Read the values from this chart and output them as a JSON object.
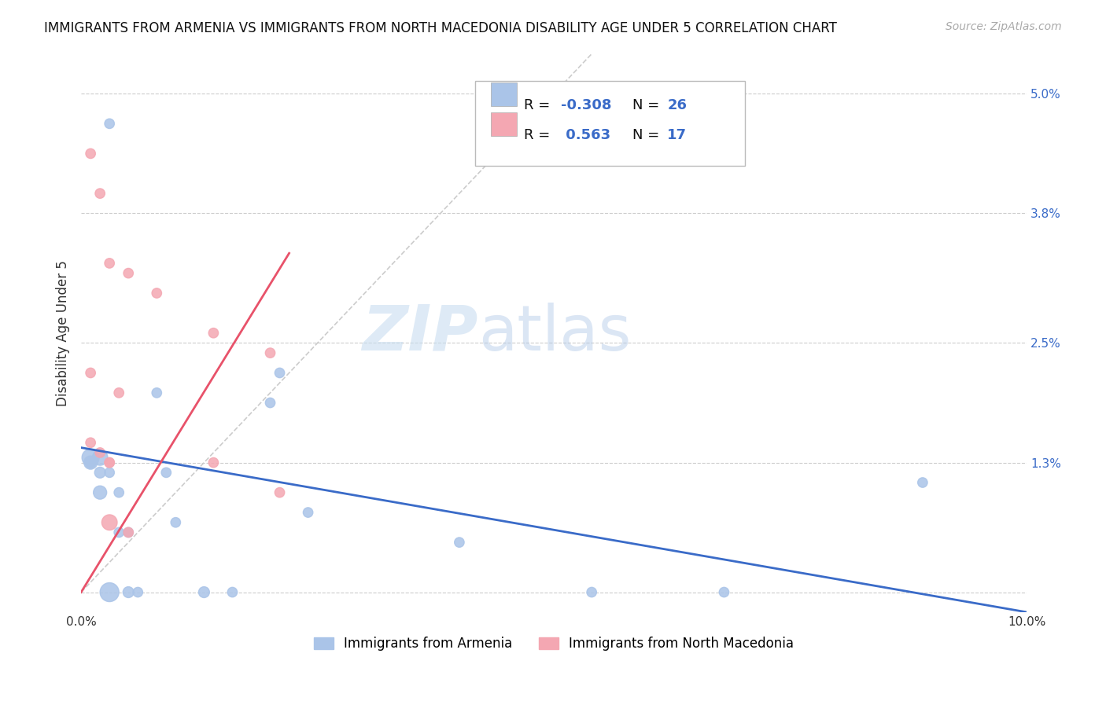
{
  "title": "IMMIGRANTS FROM ARMENIA VS IMMIGRANTS FROM NORTH MACEDONIA DISABILITY AGE UNDER 5 CORRELATION CHART",
  "source": "Source: ZipAtlas.com",
  "ylabel": "Disability Age Under 5",
  "watermark_zip": "ZIP",
  "watermark_atlas": "atlas",
  "xlim": [
    0.0,
    0.1
  ],
  "ylim": [
    -0.002,
    0.054
  ],
  "xtick_positions": [
    0.0,
    0.02,
    0.04,
    0.06,
    0.08,
    0.1
  ],
  "xtick_labels": [
    "0.0%",
    "",
    "",
    "",
    "",
    "10.0%"
  ],
  "ytick_vals_right": [
    0.05,
    0.038,
    0.025,
    0.013,
    0.0
  ],
  "ytick_labels_right": [
    "5.0%",
    "3.8%",
    "2.5%",
    "1.3%",
    ""
  ],
  "color_armenia": "#aac4e8",
  "color_macedonia": "#f4a7b2",
  "color_line_armenia": "#3a6bc8",
  "color_line_macedonia": "#e8526a",
  "color_diag": "#cccccc",
  "armenia_x": [
    0.003,
    0.005,
    0.008,
    0.01,
    0.013,
    0.016,
    0.02,
    0.002,
    0.001,
    0.001,
    0.001,
    0.002,
    0.002,
    0.003,
    0.003,
    0.004,
    0.004,
    0.005,
    0.006,
    0.009,
    0.021,
    0.024,
    0.04,
    0.054,
    0.068,
    0.089
  ],
  "armenia_y": [
    0.047,
    0.0,
    0.02,
    0.007,
    0.0,
    0.0,
    0.019,
    0.0135,
    0.0135,
    0.013,
    0.013,
    0.01,
    0.012,
    0.012,
    0.0,
    0.006,
    0.01,
    0.006,
    0.0,
    0.012,
    0.022,
    0.008,
    0.005,
    0.0,
    0.0,
    0.011
  ],
  "armenia_size": [
    80,
    100,
    80,
    80,
    100,
    80,
    80,
    200,
    250,
    150,
    100,
    150,
    100,
    80,
    300,
    80,
    80,
    80,
    80,
    80,
    80,
    80,
    80,
    80,
    80,
    80
  ],
  "macedonia_x": [
    0.001,
    0.002,
    0.003,
    0.005,
    0.008,
    0.014,
    0.02,
    0.001,
    0.001,
    0.002,
    0.003,
    0.003,
    0.004,
    0.014,
    0.021,
    0.003,
    0.005
  ],
  "macedonia_y": [
    0.044,
    0.04,
    0.033,
    0.032,
    0.03,
    0.026,
    0.024,
    0.022,
    0.015,
    0.014,
    0.013,
    0.013,
    0.02,
    0.013,
    0.01,
    0.007,
    0.006
  ],
  "macedonia_size": [
    80,
    80,
    80,
    80,
    80,
    80,
    80,
    80,
    80,
    80,
    80,
    80,
    80,
    80,
    80,
    200,
    80
  ],
  "armenia_line_x": [
    0.0,
    0.1
  ],
  "armenia_line_y": [
    0.0145,
    -0.002
  ],
  "macedonia_line_x": [
    0.0,
    0.022
  ],
  "macedonia_line_y": [
    0.0,
    0.034
  ],
  "diag_line_x": [
    0.0,
    0.054
  ],
  "diag_line_y": [
    0.0,
    0.054
  ],
  "legend_r1_label": "R = ",
  "legend_r1_val": "-0.308",
  "legend_n1_label": "N = ",
  "legend_n1_val": "26",
  "legend_r2_label": "R = ",
  "legend_r2_val": " 0.563",
  "legend_n2_label": "N = ",
  "legend_n2_val": "17",
  "bottom_legend_armenia": "Immigrants from Armenia",
  "bottom_legend_macedonia": "Immigrants from North Macedonia"
}
